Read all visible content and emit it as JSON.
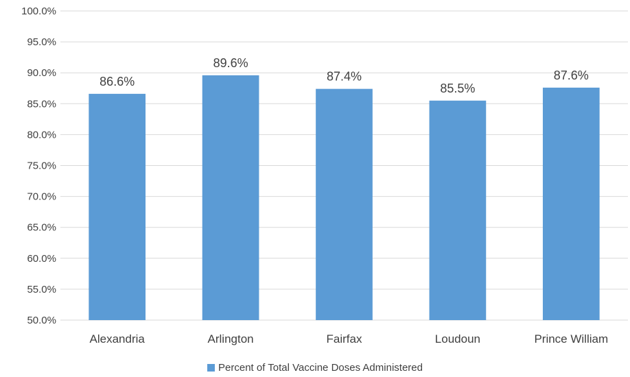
{
  "chart_data": {
    "type": "bar",
    "title": "",
    "xlabel": "",
    "ylabel": "",
    "categories": [
      "Alexandria",
      "Arlington",
      "Fairfax",
      "Loudoun",
      "Prince William"
    ],
    "series": [
      {
        "name": "Percent of Total Vaccine Doses Administered",
        "values": [
          86.6,
          89.6,
          87.4,
          85.5,
          87.6
        ],
        "labels": [
          "86.6%",
          "89.6%",
          "87.4%",
          "85.5%",
          "87.6%"
        ],
        "color": "#5B9BD5"
      }
    ],
    "ylim": [
      50,
      100
    ],
    "yticks": [
      "50.0%",
      "55.0%",
      "60.0%",
      "65.0%",
      "70.0%",
      "75.0%",
      "80.0%",
      "85.0%",
      "90.0%",
      "95.0%",
      "100.0%"
    ],
    "grid": true,
    "legend_position": "bottom"
  },
  "colors": {
    "bar": "#5B9BD5",
    "grid": "#D9D9D9",
    "text": "#404040"
  }
}
